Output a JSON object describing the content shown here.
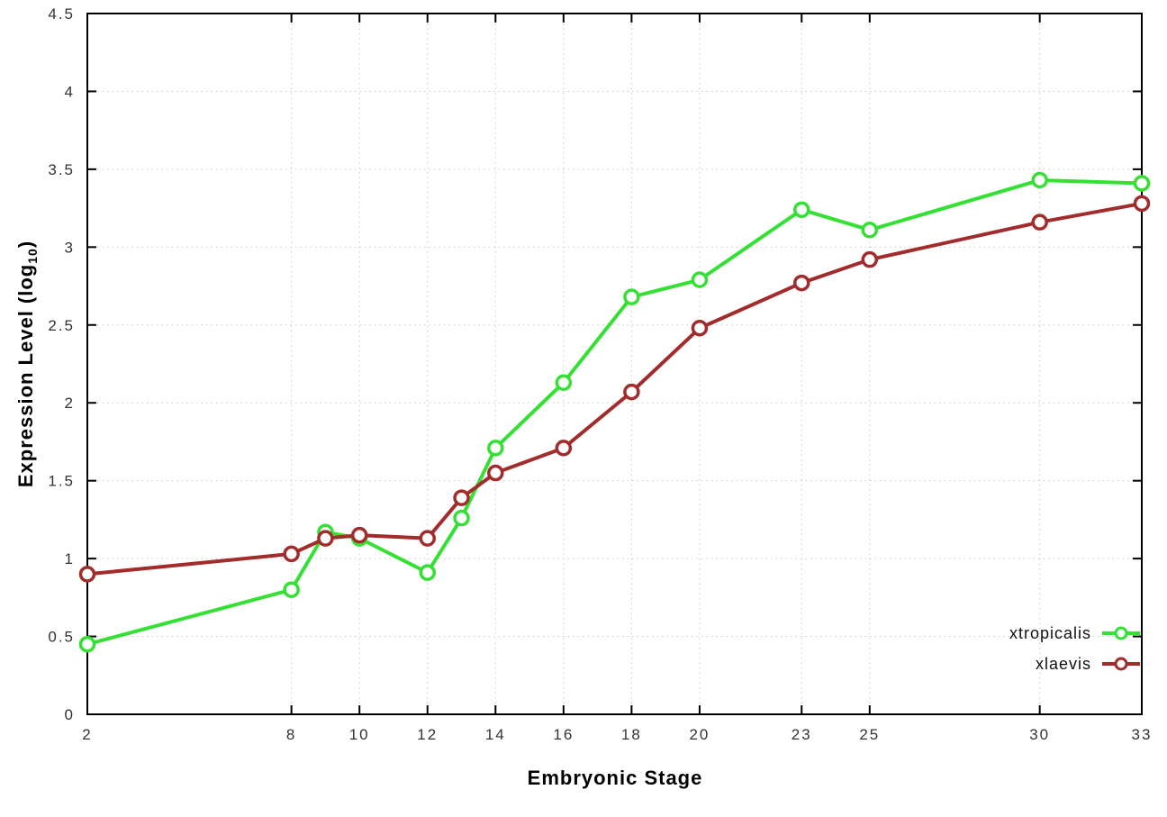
{
  "chart_data": {
    "type": "line",
    "x": [
      2,
      8,
      9,
      10,
      12,
      13,
      14,
      16,
      18,
      20,
      23,
      25,
      30,
      33
    ],
    "series": [
      {
        "name": "xtropicalis",
        "color": "#35e035",
        "values": [
          0.45,
          0.8,
          1.17,
          1.13,
          0.91,
          1.26,
          1.71,
          2.13,
          2.68,
          2.79,
          3.24,
          3.11,
          3.43,
          3.41
        ]
      },
      {
        "name": "xlaevis",
        "color": "#a22b2b",
        "values": [
          0.9,
          1.03,
          1.13,
          1.15,
          1.13,
          1.39,
          1.55,
          1.71,
          2.07,
          2.48,
          2.77,
          2.92,
          3.16,
          3.28
        ]
      }
    ],
    "xlabel": "Embryonic Stage",
    "ylabel_prefix": "Expression Level (log",
    "ylabel_sub": "10",
    "ylabel_suffix": ")",
    "xlim": [
      2,
      33
    ],
    "ylim": [
      0,
      4.5
    ],
    "xticks": [
      2,
      8,
      10,
      12,
      14,
      16,
      18,
      20,
      23,
      25,
      30,
      33
    ],
    "yticks": [
      0,
      0.5,
      1,
      1.5,
      2,
      2.5,
      3,
      3.5,
      4,
      4.5
    ],
    "grid": true,
    "legend_position": "bottom-right"
  },
  "colors": {
    "background": "#ffffff",
    "grid": "#c9c9c9",
    "axis": "#000000"
  }
}
